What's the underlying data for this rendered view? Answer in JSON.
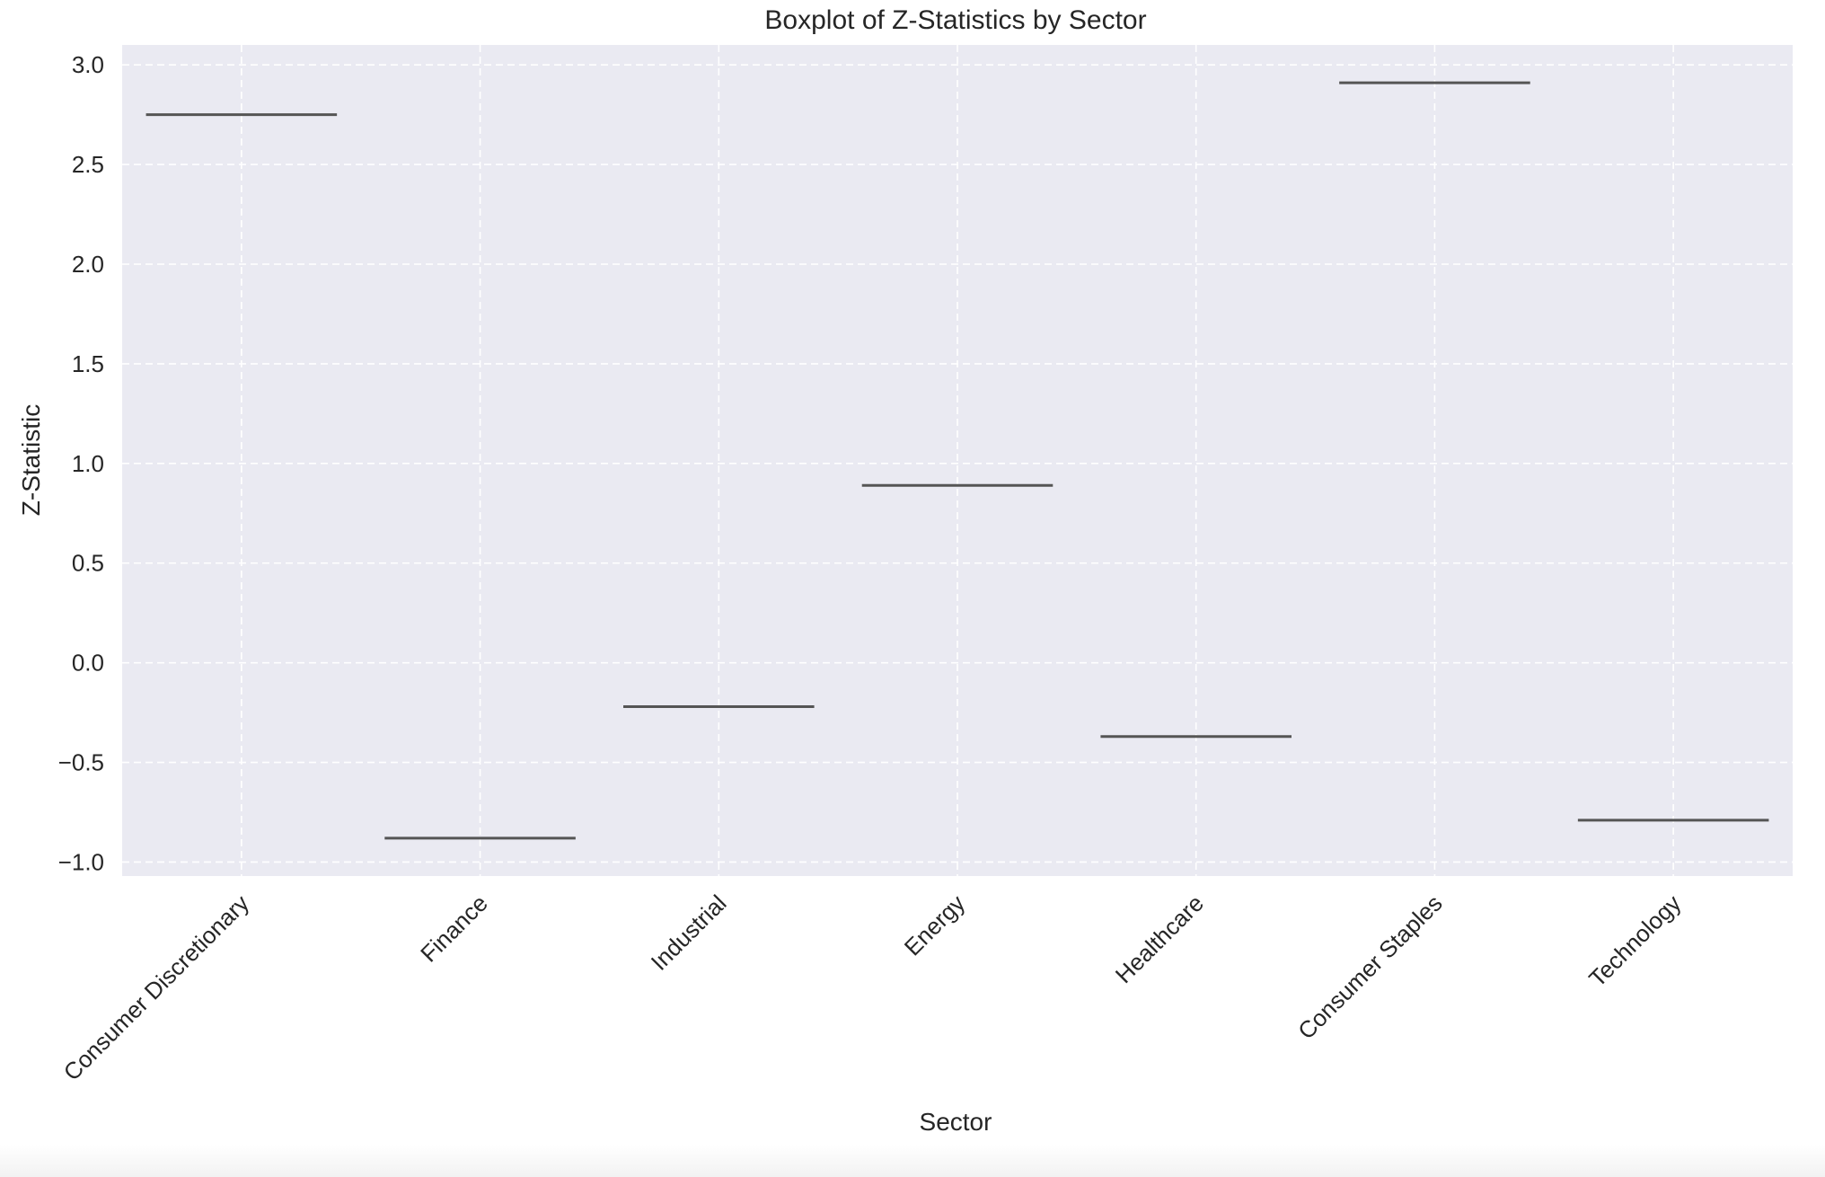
{
  "chart_data": {
    "type": "box",
    "title": "Boxplot of Z-Statistics by Sector",
    "xlabel": "Sector",
    "ylabel": "Z-Statistic",
    "categories": [
      "Consumer Discretionary",
      "Finance",
      "Industrial",
      "Energy",
      "Healthcare",
      "Consumer Staples",
      "Technology"
    ],
    "values": [
      2.75,
      -0.88,
      -0.22,
      0.89,
      -0.37,
      2.91,
      -0.79
    ],
    "ylim": [
      -1.07,
      3.1
    ],
    "yticks": [
      -1.0,
      -0.5,
      0.0,
      0.5,
      1.0,
      1.5,
      2.0,
      2.5,
      3.0
    ],
    "ytick_labels": [
      "−1.0",
      "−0.5",
      "0.0",
      "0.5",
      "1.0",
      "1.5",
      "2.0",
      "2.5",
      "3.0"
    ],
    "grid": true,
    "legend": "none",
    "colors": {
      "plot_background": "#eaeaf2",
      "grid": "#ffffff",
      "median_line": "#555555",
      "text": "#262626"
    }
  }
}
